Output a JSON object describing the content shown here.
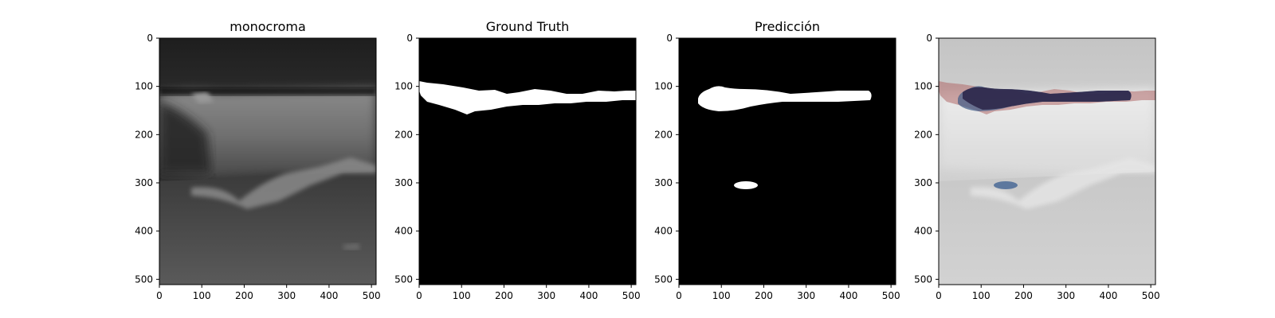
{
  "figure": {
    "panels": [
      {
        "id": "monochrome",
        "title": "monocroma",
        "kind": "ultrasound"
      },
      {
        "id": "ground-truth",
        "title": "Ground Truth",
        "kind": "mask-gt"
      },
      {
        "id": "prediction",
        "title": "Predicción",
        "kind": "mask-pred"
      },
      {
        "id": "overlay",
        "title": "",
        "kind": "overlay"
      }
    ],
    "axes": {
      "x_ticks": [
        "0",
        "100",
        "200",
        "300",
        "400",
        "500"
      ],
      "y_ticks": [
        "0",
        "100",
        "200",
        "300",
        "400",
        "500"
      ]
    },
    "colors": {
      "mask_background": "#000000",
      "mask_foreground": "#ffffff",
      "overlay_ground_truth": "#b06a6a",
      "overlay_prediction": "#3f5a86",
      "overlay_intersection": "#2a2346"
    }
  }
}
